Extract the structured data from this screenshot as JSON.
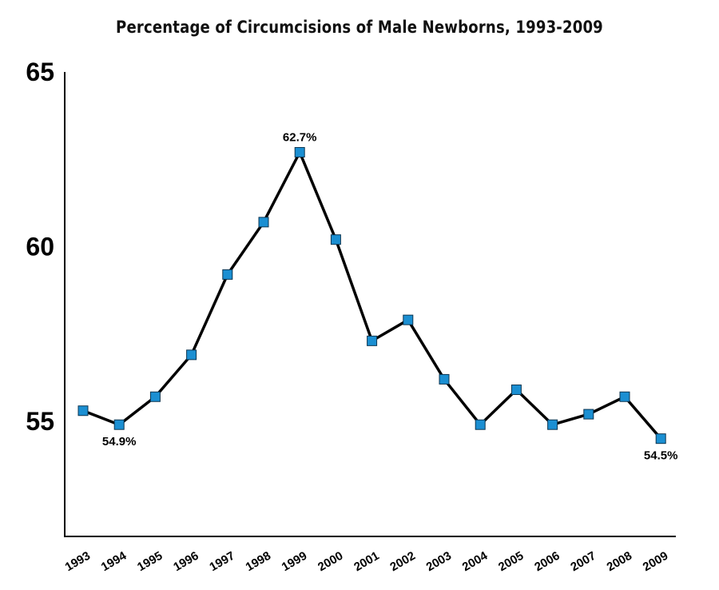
{
  "chart_data": {
    "type": "line",
    "title": "Percentage of Circumcisions of Male Newborns, 1993-2009",
    "xlabel": "",
    "ylabel": "",
    "categories": [
      "1993",
      "1994",
      "1995",
      "1996",
      "1997",
      "1998",
      "1999",
      "2000",
      "2001",
      "2002",
      "2003",
      "2004",
      "2005",
      "2006",
      "2007",
      "2008",
      "2009"
    ],
    "y_ticks": [
      "55",
      "60",
      "65"
    ],
    "ylim": [
      51.7,
      65
    ],
    "grid": false,
    "series": [
      {
        "values": [
          55.3,
          54.9,
          55.7,
          56.9,
          59.2,
          60.7,
          62.7,
          60.2,
          57.3,
          57.9,
          56.2,
          54.9,
          55.9,
          54.9,
          55.2,
          55.7,
          54.5
        ],
        "line_color": "#000000",
        "marker_color": "#1b8fd2",
        "marker": "square"
      }
    ],
    "annotations": [
      {
        "category": "1994",
        "text": "54.9%",
        "position": "below"
      },
      {
        "category": "1999",
        "text": "62.7%",
        "position": "above"
      },
      {
        "category": "2009",
        "text": "54.5%",
        "position": "below"
      }
    ]
  }
}
